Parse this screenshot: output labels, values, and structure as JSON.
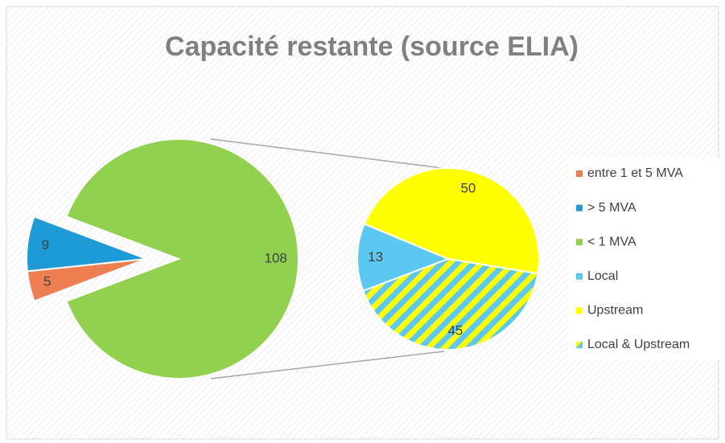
{
  "chart_data": {
    "type": "pie-of-pie",
    "title": "Capacité restante (source ELIA)",
    "slices": [
      {
        "name": "entre 1 et 5 MVA",
        "color": "#ee7f52",
        "value": 5
      },
      {
        "name": "> 5 MVA",
        "color": "#1e9bd7",
        "value": 9
      },
      {
        "name": "< 1 MVA",
        "color": "#92d050",
        "value": 108
      }
    ],
    "sub_slices": [
      {
        "name": "Local",
        "color": "#5cc8f2",
        "value": 13
      },
      {
        "name": "Upstream",
        "color": "#ffff00",
        "value": 50
      },
      {
        "name": "Local & Upstream",
        "color": "#ffff00",
        "hatch_color": "#5cc8f2",
        "value": 45
      }
    ],
    "legend": "right"
  }
}
